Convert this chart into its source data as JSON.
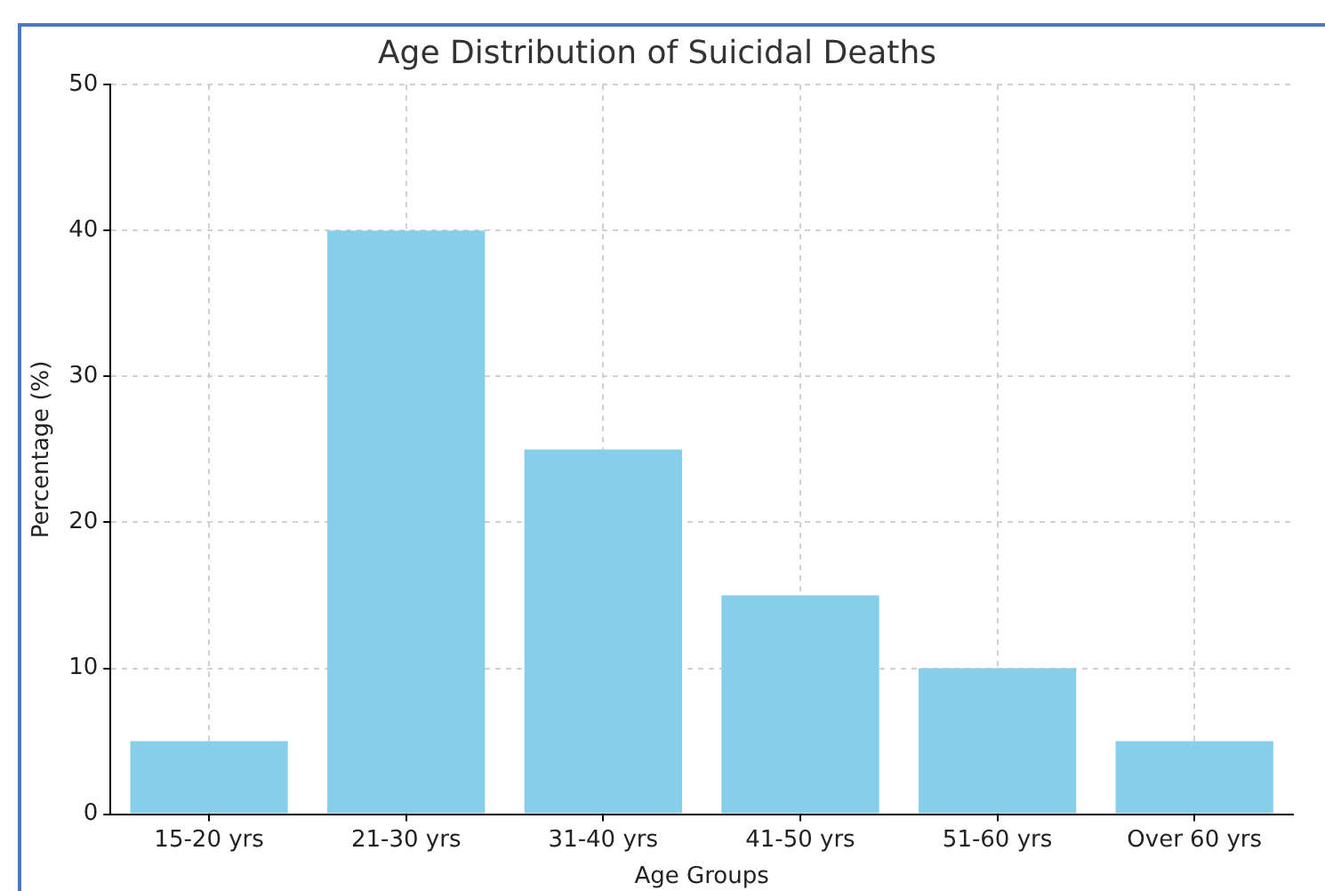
{
  "chart_data": {
    "type": "bar",
    "title": "Age Distribution of Suicidal Deaths",
    "xlabel": "Age Groups",
    "ylabel": "Percentage (%)",
    "categories": [
      "15-20 yrs",
      "21-30 yrs",
      "31-40 yrs",
      "41-50 yrs",
      "51-60 yrs",
      "Over 60 yrs"
    ],
    "values": [
      5,
      40,
      25,
      15,
      10,
      5
    ],
    "color": "#87ceeb",
    "ylim": [
      0,
      50
    ],
    "yticks": [
      0,
      10,
      20,
      30,
      40,
      50
    ],
    "grid": true,
    "legend": false
  }
}
